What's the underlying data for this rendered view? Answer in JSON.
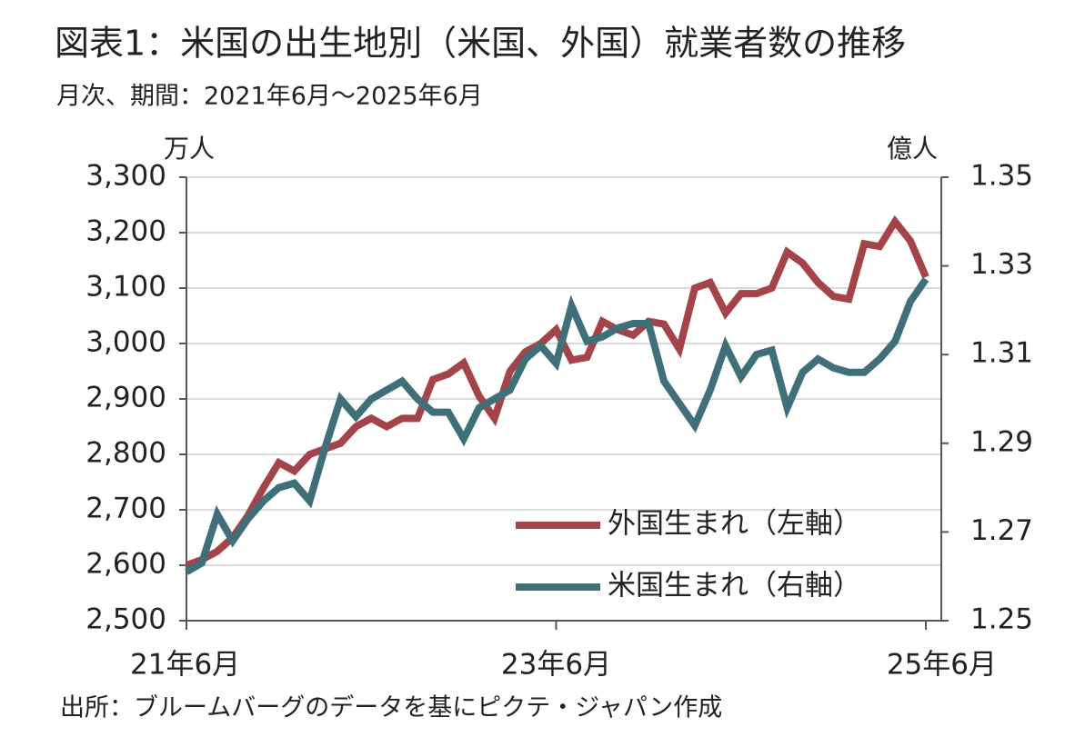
{
  "chart_data": {
    "type": "line",
    "title": "図表1：米国の出生地別（米国、外国）就業者数の推移",
    "subtitle": "月次、期間：2021年6月～2025年6月",
    "y_label": "万人",
    "y2_label": "億人",
    "source": "出所：ブルームバーグのデータを基にピクテ・ジャパン作成",
    "categories": [
      "21年6月",
      null,
      null,
      null,
      null,
      null,
      null,
      null,
      null,
      null,
      null,
      null,
      null,
      null,
      null,
      null,
      null,
      null,
      null,
      null,
      null,
      null,
      null,
      null,
      "23年6月",
      null,
      null,
      null,
      null,
      null,
      null,
      null,
      null,
      null,
      null,
      null,
      null,
      null,
      null,
      null,
      null,
      null,
      null,
      null,
      null,
      null,
      null,
      null,
      "25年6月"
    ],
    "series": [
      {
        "name": "外国生まれ（左軸）",
        "color": "#a5434a",
        "axis": "y",
        "values": [
          2600,
          2610,
          2625,
          2650,
          2690,
          2740,
          2785,
          2770,
          2800,
          2810,
          2820,
          2850,
          2865,
          2850,
          2865,
          2865,
          2935,
          2945,
          2965,
          2905,
          2865,
          2950,
          2985,
          3000,
          3025,
          2970,
          2975,
          3040,
          3025,
          3015,
          3040,
          3035,
          2990,
          3100,
          3110,
          3055,
          3090,
          3090,
          3100,
          3165,
          3145,
          3110,
          3085,
          3080,
          3180,
          3175,
          3220,
          3185,
          3120
        ]
      },
      {
        "name": "米国生まれ（右軸）",
        "color": "#3f6f78",
        "axis": "y2",
        "values": [
          1.261,
          1.263,
          1.274,
          1.268,
          1.273,
          1.277,
          1.28,
          1.281,
          1.277,
          1.289,
          1.3,
          1.296,
          1.3,
          1.302,
          1.304,
          1.3,
          1.297,
          1.297,
          1.291,
          1.298,
          1.3,
          1.302,
          1.309,
          1.312,
          1.308,
          1.321,
          1.313,
          1.314,
          1.316,
          1.317,
          1.317,
          1.304,
          1.299,
          1.294,
          1.302,
          1.312,
          1.305,
          1.31,
          1.311,
          1.298,
          1.306,
          1.309,
          1.307,
          1.306,
          1.306,
          1.309,
          1.313,
          1.322,
          1.327
        ]
      }
    ],
    "ylim": [
      2500,
      3300
    ],
    "yticks": [
      {
        "value": 2500,
        "label": "2,500"
      },
      {
        "value": 2600,
        "label": "2,600"
      },
      {
        "value": 2700,
        "label": "2,700"
      },
      {
        "value": 2800,
        "label": "2,800"
      },
      {
        "value": 2900,
        "label": "2,900"
      },
      {
        "value": 3000,
        "label": "3,000"
      },
      {
        "value": 3100,
        "label": "3,100"
      },
      {
        "value": 3200,
        "label": "3,200"
      },
      {
        "value": 3300,
        "label": "3,300"
      }
    ],
    "y2lim": [
      1.25,
      1.35
    ],
    "y2ticks": [
      1.25,
      1.27,
      1.29,
      1.31,
      1.33,
      1.35
    ],
    "grid": true,
    "legend": "lower right"
  }
}
